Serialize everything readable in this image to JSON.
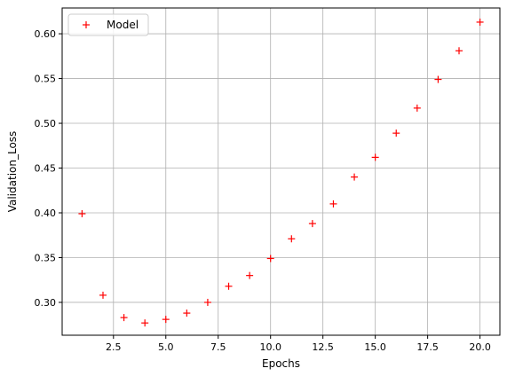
{
  "chart_data": {
    "type": "scatter",
    "xlabel": "Epochs",
    "ylabel": "Validation_Loss",
    "xlim": [
      0.05,
      20.95
    ],
    "ylim": [
      0.2633,
      0.6288
    ],
    "xticks": [
      2.5,
      5.0,
      7.5,
      10.0,
      12.5,
      15.0,
      17.5,
      20.0
    ],
    "xtick_labels": [
      "2.5",
      "5.0",
      "7.5",
      "10.0",
      "12.5",
      "15.0",
      "17.5",
      "20.0"
    ],
    "yticks": [
      0.3,
      0.35,
      0.4,
      0.45,
      0.5,
      0.55,
      0.6
    ],
    "ytick_labels": [
      "0.30",
      "0.35",
      "0.40",
      "0.45",
      "0.50",
      "0.55",
      "0.60"
    ],
    "grid": true,
    "legend_position": "top-left",
    "series": [
      {
        "name": "Model",
        "color": "#ff0000",
        "marker": "+",
        "x": [
          1,
          2,
          3,
          4,
          5,
          6,
          7,
          8,
          9,
          10,
          11,
          12,
          13,
          14,
          15,
          16,
          17,
          18,
          19,
          20
        ],
        "y": [
          0.399,
          0.308,
          0.283,
          0.277,
          0.281,
          0.288,
          0.3,
          0.318,
          0.33,
          0.349,
          0.371,
          0.388,
          0.41,
          0.44,
          0.462,
          0.489,
          0.517,
          0.549,
          0.581,
          0.613
        ]
      }
    ]
  }
}
